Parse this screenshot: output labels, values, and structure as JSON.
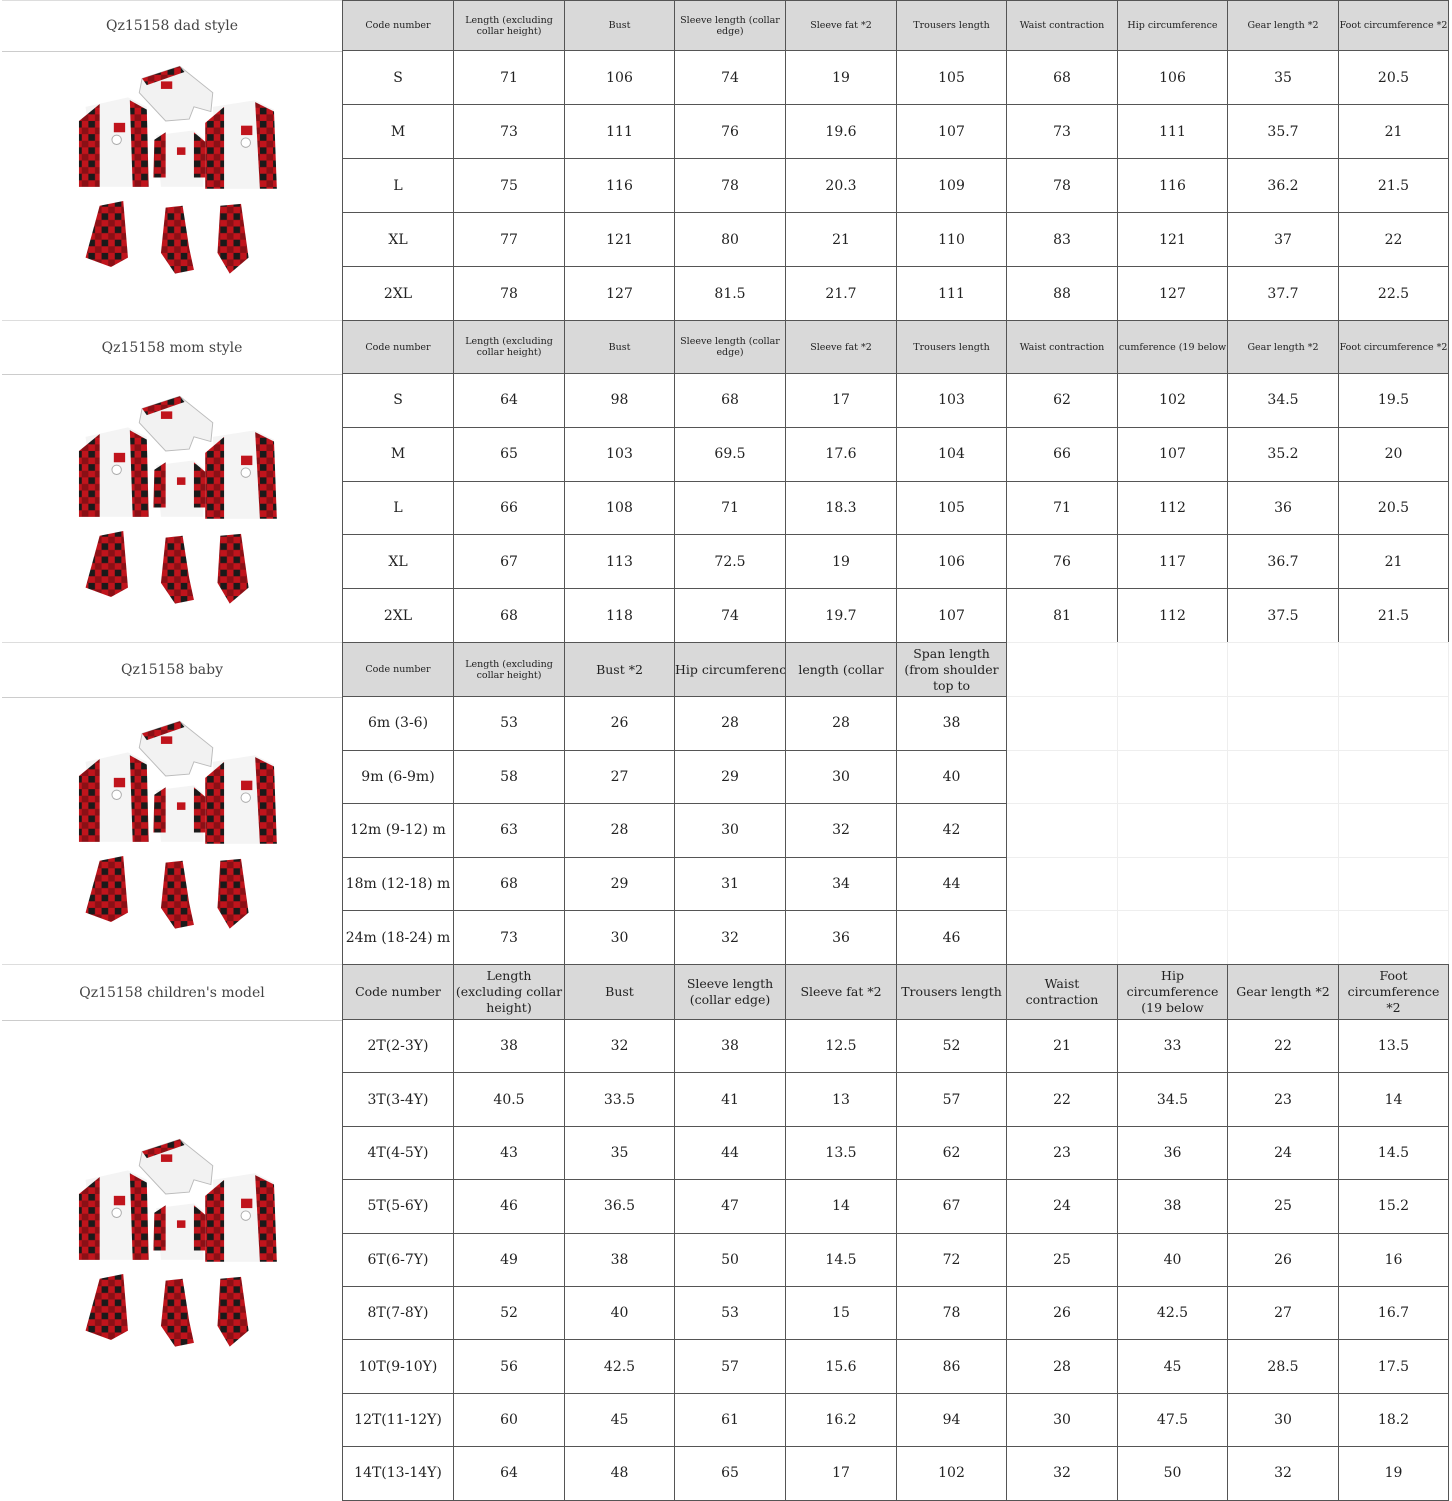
{
  "sections": [
    {
      "label": "Qz15158 dad style",
      "headers": [
        "Code number",
        "Length (excluding collar height)",
        "Bust",
        "Sleeve length (collar edge)",
        "Sleeve fat *2",
        "Trousers length",
        "Waist contraction",
        "Hip circumference",
        "Gear length *2",
        "Foot circumference *2"
      ],
      "rows": [
        [
          "S",
          "71",
          "106",
          "74",
          "19",
          "105",
          "68",
          "106",
          "35",
          "20.5"
        ],
        [
          "M",
          "73",
          "111",
          "76",
          "19.6",
          "107",
          "73",
          "111",
          "35.7",
          "21"
        ],
        [
          "L",
          "75",
          "116",
          "78",
          "20.3",
          "109",
          "78",
          "116",
          "36.2",
          "21.5"
        ],
        [
          "XL",
          "77",
          "121",
          "80",
          "21",
          "110",
          "83",
          "121",
          "37",
          "22"
        ],
        [
          "2XL",
          "78",
          "127",
          "81.5",
          "21.7",
          "111",
          "88",
          "127",
          "37.7",
          "22.5"
        ]
      ]
    },
    {
      "label": "Qz15158 mom style",
      "headers": [
        "Code number",
        "Length (excluding collar height)",
        "Bust",
        "Sleeve length (collar edge)",
        "Sleeve fat *2",
        "Trousers length",
        "Waist contraction",
        "cumference (19 below",
        "Gear length *2",
        "Foot circumference *2"
      ],
      "rows": [
        [
          "S",
          "64",
          "98",
          "68",
          "17",
          "103",
          "62",
          "102",
          "34.5",
          "19.5"
        ],
        [
          "M",
          "65",
          "103",
          "69.5",
          "17.6",
          "104",
          "66",
          "107",
          "35.2",
          "20"
        ],
        [
          "L",
          "66",
          "108",
          "71",
          "18.3",
          "105",
          "71",
          "112",
          "36",
          "20.5"
        ],
        [
          "XL",
          "67",
          "113",
          "72.5",
          "19",
          "106",
          "76",
          "117",
          "36.7",
          "21"
        ],
        [
          "2XL",
          "68",
          "118",
          "74",
          "19.7",
          "107",
          "81",
          "112",
          "37.5",
          "21.5"
        ]
      ]
    },
    {
      "label": "Qz15158 baby",
      "headers": [
        "Code number",
        "Length (excluding collar height)",
        "Bust *2",
        "Hip circumference",
        "length (collar",
        "Span length (from shoulder top to"
      ],
      "rows": [
        [
          "6m (3-6)",
          "53",
          "26",
          "28",
          "28",
          "38"
        ],
        [
          "9m (6-9m)",
          "58",
          "27",
          "29",
          "30",
          "40"
        ],
        [
          "12m (9-12) m",
          "63",
          "28",
          "30",
          "32",
          "42"
        ],
        [
          "18m (12-18) m",
          "68",
          "29",
          "31",
          "34",
          "44"
        ],
        [
          "24m (18-24) m",
          "73",
          "30",
          "32",
          "36",
          "46"
        ]
      ]
    },
    {
      "label": "Qz15158 children's model",
      "headers": [
        "Code number",
        "Length (excluding collar height)",
        "Bust",
        "Sleeve length (collar edge)",
        "Sleeve fat *2",
        "Trousers length",
        "Waist contraction",
        "Hip circumference (19 below",
        "Gear length *2",
        "Foot circumference *2"
      ],
      "rows": [
        [
          "2T(2-3Y)",
          "38",
          "32",
          "38",
          "12.5",
          "52",
          "21",
          "33",
          "22",
          "13.5"
        ],
        [
          "3T(3-4Y)",
          "40.5",
          "33.5",
          "41",
          "13",
          "57",
          "22",
          "34.5",
          "23",
          "14"
        ],
        [
          "4T(4-5Y)",
          "43",
          "35",
          "44",
          "13.5",
          "62",
          "23",
          "36",
          "24",
          "14.5"
        ],
        [
          "5T(5-6Y)",
          "46",
          "36.5",
          "47",
          "14",
          "67",
          "24",
          "38",
          "25",
          "15.2"
        ],
        [
          "6T(6-7Y)",
          "49",
          "38",
          "50",
          "14.5",
          "72",
          "25",
          "40",
          "26",
          "16"
        ],
        [
          "8T(7-8Y)",
          "52",
          "40",
          "53",
          "15",
          "78",
          "26",
          "42.5",
          "27",
          "16.7"
        ],
        [
          "10T(9-10Y)",
          "56",
          "42.5",
          "57",
          "15.6",
          "86",
          "28",
          "45",
          "28.5",
          "17.5"
        ],
        [
          "12T(11-12Y)",
          "60",
          "45",
          "61",
          "16.2",
          "94",
          "30",
          "47.5",
          "30",
          "18.2"
        ],
        [
          "14T(13-14Y)",
          "64",
          "48",
          "65",
          "17",
          "102",
          "32",
          "50",
          "32",
          "19"
        ]
      ]
    }
  ],
  "colors": {
    "header_bg": "#d9d9d9",
    "plaid_red": "#c0141c",
    "plaid_black": "#1a1a1a"
  },
  "illustration": "family-christmas-pajamas-image"
}
